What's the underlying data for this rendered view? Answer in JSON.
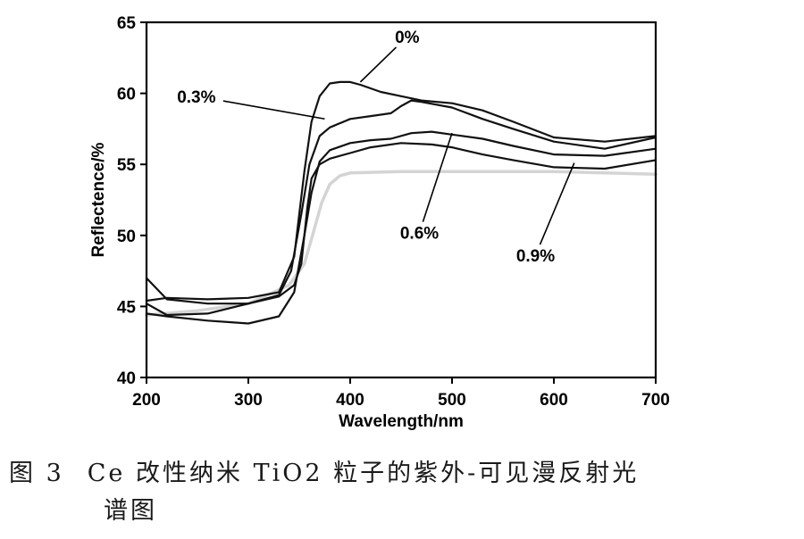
{
  "chart_data": {
    "type": "line",
    "title": "",
    "xlabel": "Wavelength/nm",
    "ylabel": "Reflectence/%",
    "xlim": [
      200,
      700
    ],
    "ylim": [
      40,
      65
    ],
    "x_ticks": [
      200,
      300,
      400,
      500,
      600,
      700
    ],
    "y_ticks": [
      40,
      45,
      50,
      55,
      60,
      65
    ],
    "grid": false,
    "legend": "annotations with leader lines",
    "series": [
      {
        "name": "0%",
        "color": "#111111",
        "x": [
          200,
          220,
          260,
          300,
          330,
          345,
          355,
          362,
          370,
          380,
          390,
          400,
          410,
          430,
          450,
          470,
          500,
          530,
          560,
          600,
          650,
          700
        ],
        "y": [
          45.4,
          45.6,
          45.5,
          45.6,
          46.0,
          48.5,
          54.5,
          58.0,
          59.8,
          60.7,
          60.8,
          60.8,
          60.6,
          60.1,
          59.8,
          59.5,
          59.3,
          58.8,
          58.0,
          56.9,
          56.6,
          57.0
        ]
      },
      {
        "name": "0.3%",
        "color": "#111111",
        "x": [
          200,
          220,
          260,
          300,
          330,
          342,
          352,
          360,
          370,
          380,
          400,
          420,
          440,
          450,
          460,
          470,
          500,
          530,
          560,
          600,
          650,
          700
        ],
        "y": [
          45.2,
          44.4,
          44.5,
          45.2,
          45.8,
          47.5,
          51.5,
          55.0,
          57.0,
          57.6,
          58.2,
          58.4,
          58.6,
          59.1,
          59.5,
          59.4,
          59.0,
          58.2,
          57.5,
          56.6,
          56.1,
          56.9
        ]
      },
      {
        "name": "0.6%",
        "color": "#111111",
        "x": [
          200,
          220,
          260,
          280,
          300,
          330,
          345,
          355,
          362,
          370,
          380,
          400,
          420,
          440,
          460,
          480,
          500,
          530,
          560,
          600,
          650,
          700
        ],
        "y": [
          44.5,
          44.3,
          44.0,
          43.9,
          43.8,
          44.3,
          46.0,
          50.0,
          53.0,
          55.2,
          56.0,
          56.5,
          56.7,
          56.8,
          57.2,
          57.3,
          57.1,
          56.8,
          56.3,
          55.7,
          55.6,
          56.1
        ]
      },
      {
        "name": "0.9%",
        "color": "#111111",
        "x": [
          200,
          220,
          260,
          300,
          330,
          345,
          352,
          358,
          362,
          370,
          380,
          400,
          420,
          450,
          480,
          500,
          530,
          560,
          600,
          650,
          700
        ],
        "y": [
          47.0,
          45.5,
          45.2,
          45.2,
          45.7,
          46.5,
          48.0,
          52.0,
          54.0,
          55.0,
          55.4,
          55.8,
          56.2,
          56.5,
          56.4,
          56.2,
          55.7,
          55.3,
          54.8,
          54.7,
          55.3
        ]
      },
      {
        "name": "faint gray curve",
        "color": "#d4d4d4",
        "x": [
          200,
          250,
          300,
          340,
          355,
          365,
          372,
          380,
          390,
          400,
          450,
          500,
          600,
          700
        ],
        "y": [
          44.4,
          44.7,
          45.2,
          46.5,
          48.0,
          50.5,
          52.3,
          53.6,
          54.2,
          54.4,
          54.5,
          54.5,
          54.5,
          54.3
        ]
      }
    ],
    "annotations": [
      {
        "label": "0%",
        "text_at": [
          456,
          64.0
        ],
        "line_to": [
          410,
          60.8
        ]
      },
      {
        "label": "0.3%",
        "text_at": [
          249,
          59.8
        ],
        "line_to": [
          375,
          58.2
        ]
      },
      {
        "label": "0.6%",
        "text_at": [
          468,
          50.2
        ],
        "line_to": [
          500,
          57.2
        ]
      },
      {
        "label": "0.9%",
        "text_at": [
          582,
          48.6
        ],
        "line_to": [
          620,
          55.1
        ]
      }
    ]
  },
  "caption": {
    "figure_number": "图 3",
    "text_line1": "Ce 改性纳米 TiO2 粒子的紫外-可见漫反射光",
    "text_line2": "谱图"
  }
}
